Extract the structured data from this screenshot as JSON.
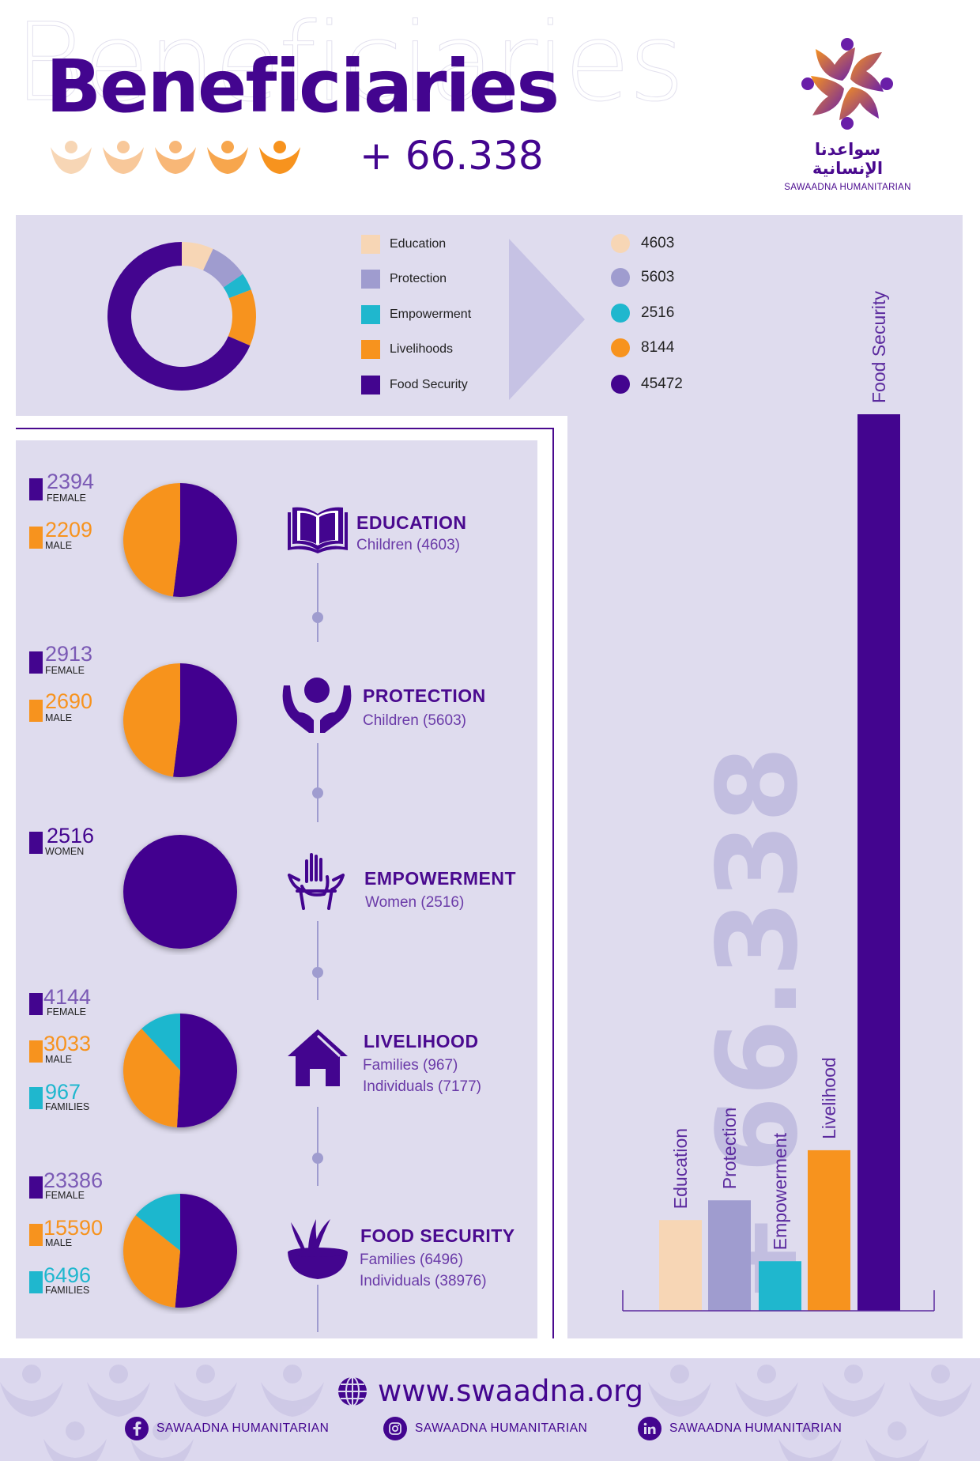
{
  "header": {
    "title": "Beneficiaries",
    "ghost_title": "Beneficiaries",
    "total": "+ 66.338"
  },
  "logo": {
    "arabic": "سواعدنا الإنسانية",
    "english": "SAWAADNA HUMANITARIAN"
  },
  "colors": {
    "education": "#f7d6b5",
    "protection": "#9f9ccf",
    "empowerment": "#1fb7ce",
    "livelihoods": "#f7931e",
    "food_security": "#43058f"
  },
  "chart_data": [
    {
      "type": "pie",
      "style": "donut",
      "categories": [
        "Education",
        "Protection",
        "Empowerment",
        "Livelihoods",
        "Food Security"
      ],
      "values": [
        4603,
        5603,
        2516,
        8144,
        45472
      ]
    },
    {
      "type": "bar",
      "categories": [
        "Education",
        "Protection",
        "Empowerment",
        "Livelihood",
        "Food Security"
      ],
      "values": [
        4603,
        5603,
        2516,
        8144,
        45472
      ],
      "big_label": "+ 66.338"
    },
    {
      "type": "pie",
      "title": "EDUCATION",
      "categories": [
        "FEMALE",
        "MALE"
      ],
      "values": [
        2394,
        2209
      ]
    },
    {
      "type": "pie",
      "title": "PROTECTION",
      "categories": [
        "FEMALE",
        "MALE"
      ],
      "values": [
        2913,
        2690
      ]
    },
    {
      "type": "pie",
      "title": "EMPOWERMENT",
      "categories": [
        "WOMEN"
      ],
      "values": [
        2516
      ]
    },
    {
      "type": "pie",
      "title": "LIVELIHOOD",
      "categories": [
        "FEMALE",
        "MALE",
        "FAMILIES"
      ],
      "values": [
        4144,
        3033,
        967
      ]
    },
    {
      "type": "pie",
      "title": "FOOD SECURITY",
      "categories": [
        "FEMALE",
        "MALE",
        "FAMILIES"
      ],
      "values": [
        23386,
        15590,
        6496
      ]
    }
  ],
  "legend": [
    {
      "label": "Education",
      "value": "4603",
      "color": "#f7d6b5"
    },
    {
      "label": "Protection",
      "value": "5603",
      "color": "#9f9ccf"
    },
    {
      "label": "Empowerment",
      "value": "2516",
      "color": "#1fb7ce"
    },
    {
      "label": "Livelihoods",
      "value": "8144",
      "color": "#f7931e"
    },
    {
      "label": "Food Security",
      "value": "45472",
      "color": "#43058f"
    }
  ],
  "categories": [
    {
      "title": "EDUCATION",
      "lines": [
        "Children (4603)"
      ],
      "icon": "book-icon",
      "stats": [
        {
          "num": "2394",
          "label": "FEMALE",
          "color": "#43058f",
          "text_color": "#7b5ab5"
        },
        {
          "num": "2209",
          "label": "MALE",
          "color": "#f7931e",
          "text_color": "#f7931e"
        }
      ]
    },
    {
      "title": "PROTECTION",
      "lines": [
        "Children (5603)"
      ],
      "icon": "hands-protect-icon",
      "stats": [
        {
          "num": "2913",
          "label": "FEMALE",
          "color": "#43058f",
          "text_color": "#7b5ab5"
        },
        {
          "num": "2690",
          "label": "MALE",
          "color": "#f7931e",
          "text_color": "#f7931e"
        }
      ]
    },
    {
      "title": "EMPOWERMENT",
      "lines": [
        "Women (2516)"
      ],
      "icon": "raised-hands-icon",
      "stats": [
        {
          "num": "2516",
          "label": "WOMEN",
          "color": "#43058f",
          "text_color": "#43058f"
        }
      ]
    },
    {
      "title": "LIVELIHOOD",
      "lines": [
        "Families (967)",
        "Individuals (7177)"
      ],
      "icon": "house-icon",
      "stats": [
        {
          "num": "4144",
          "label": "FEMALE",
          "color": "#43058f",
          "text_color": "#7b5ab5"
        },
        {
          "num": "3033",
          "label": "MALE",
          "color": "#f7931e",
          "text_color": "#f7931e"
        },
        {
          "num": "967",
          "label": "FAMILIES",
          "color": "#1fb7ce",
          "text_color": "#1fb7ce"
        }
      ]
    },
    {
      "title": "FOOD SECURITY",
      "lines": [
        "Families (6496)",
        "Individuals (38976)"
      ],
      "icon": "wheat-bowl-icon",
      "stats": [
        {
          "num": "23386",
          "label": "FEMALE",
          "color": "#43058f",
          "text_color": "#7b5ab5"
        },
        {
          "num": "15590",
          "label": "MALE",
          "color": "#f7931e",
          "text_color": "#f7931e"
        },
        {
          "num": "6496",
          "label": "FAMILIES",
          "color": "#1fb7ce",
          "text_color": "#1fb7ce"
        }
      ]
    }
  ],
  "footer": {
    "website": "www.swaadna.org",
    "socials": [
      {
        "icon": "facebook-icon",
        "label": "SAWAADNA HUMANITARIAN"
      },
      {
        "icon": "instagram-icon",
        "label": "SAWAADNA HUMANITARIAN"
      },
      {
        "icon": "linkedin-icon",
        "label": "SAWAADNA HUMANITARIAN"
      }
    ]
  }
}
